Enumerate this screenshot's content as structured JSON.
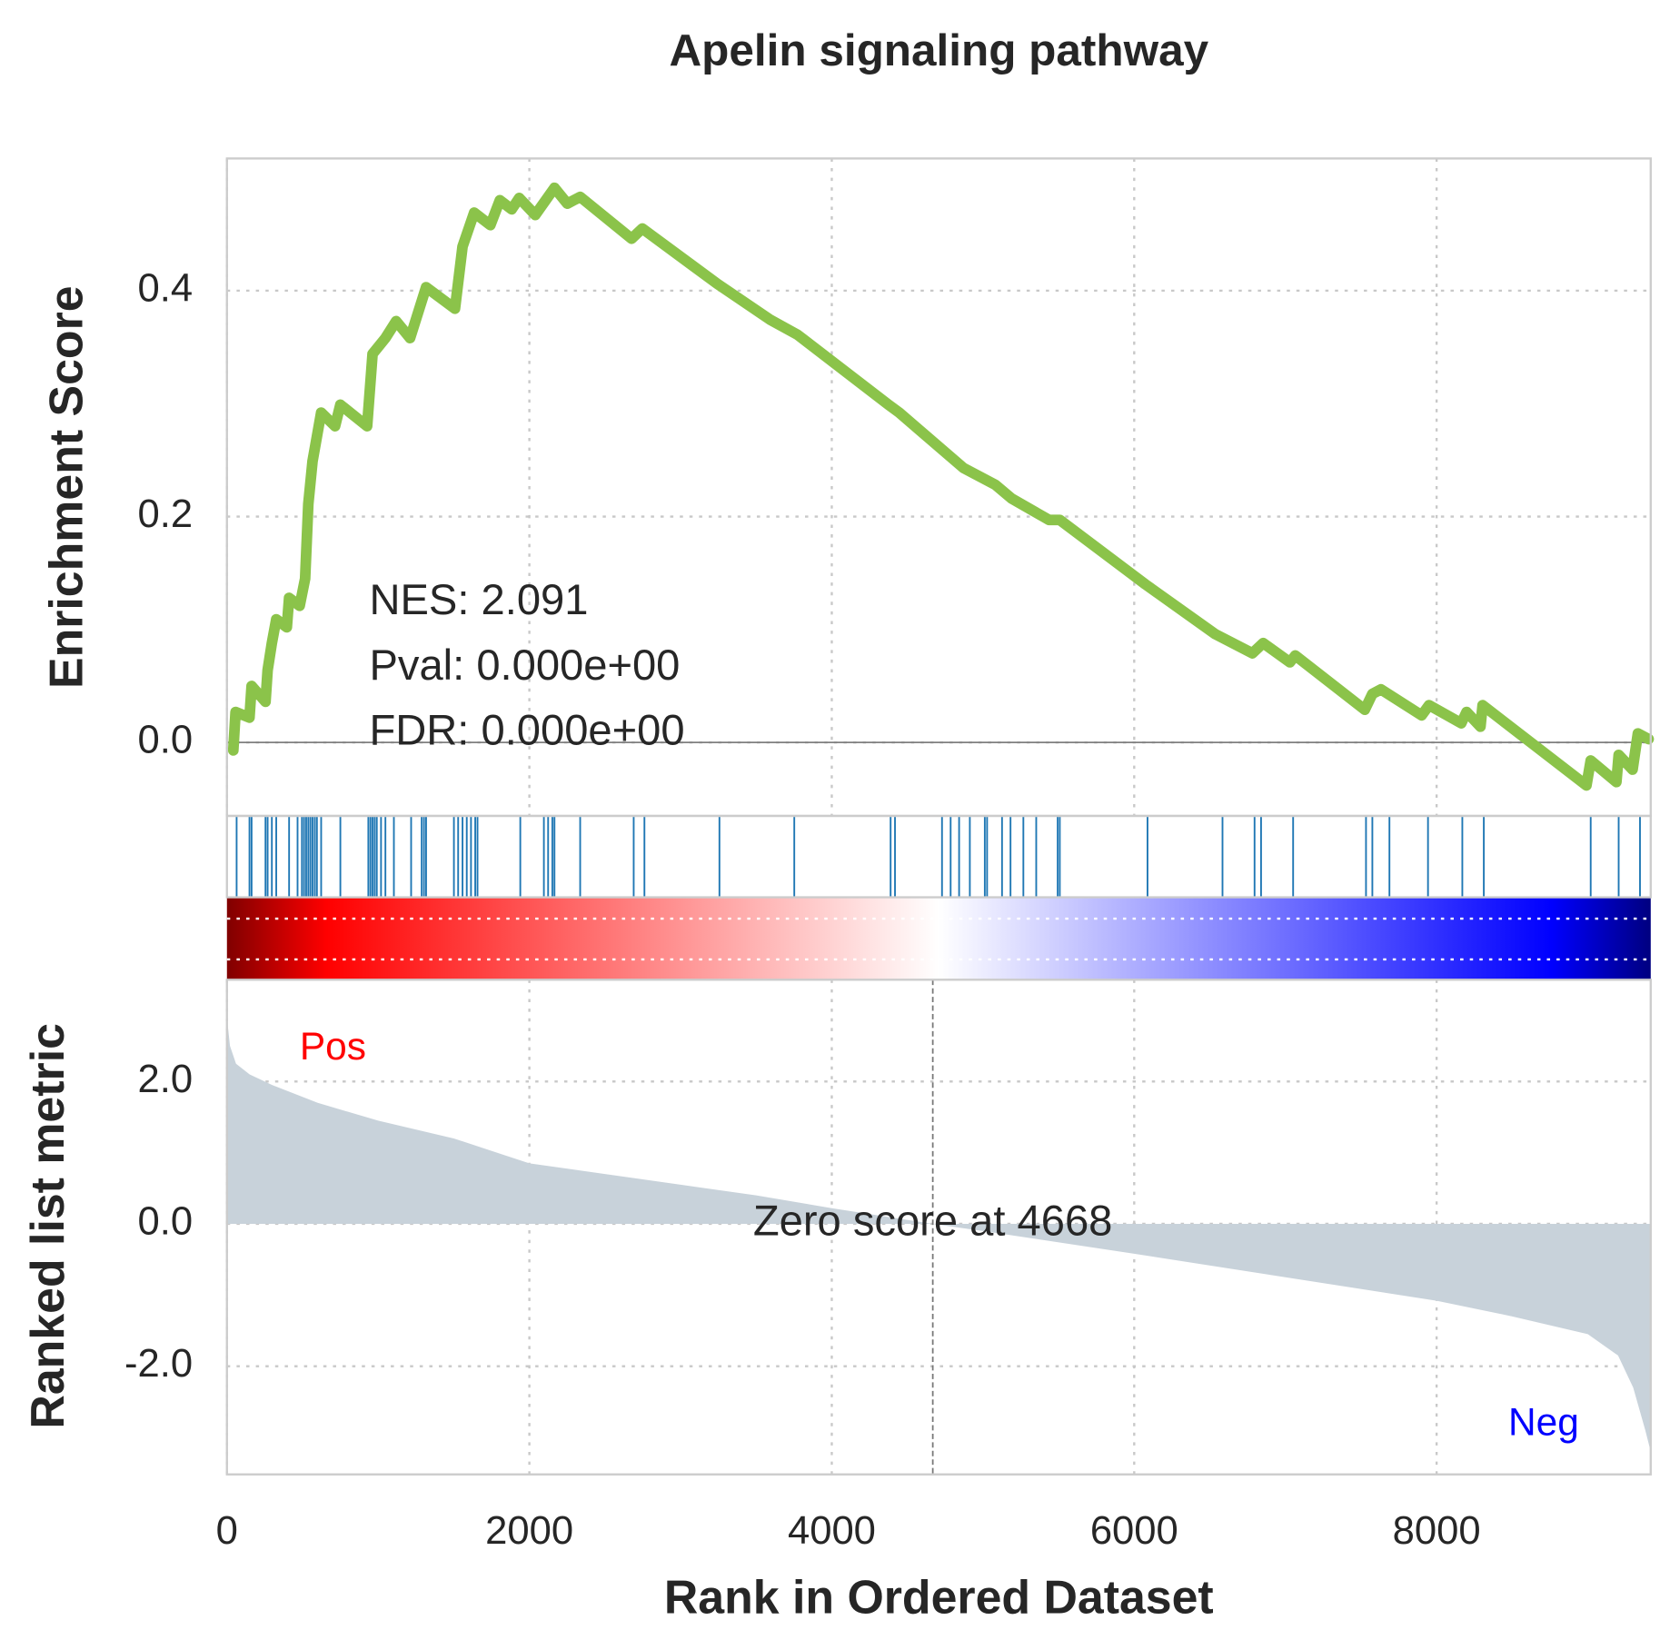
{
  "chart_data": {
    "type": "gsea",
    "title": "Apelin signaling pathway",
    "xlabel": "Rank in Ordered Dataset",
    "xlim": [
      0,
      9416
    ],
    "xticks": [
      0,
      2000,
      4000,
      6000,
      8000
    ],
    "grid": true,
    "annotations": [
      "NES: 2.091",
      "Pval: 0.000e+00",
      "FDR: 0.000e+00"
    ],
    "es": {
      "ylabel": "Enrichment Score",
      "color": "#8bc34a",
      "ylim": [
        -0.065,
        0.517
      ],
      "yticks": [
        {
          "value": 0,
          "label": "0.0"
        },
        {
          "value": 0.2,
          "label": "0.2"
        },
        {
          "value": 0.4,
          "label": "0.4"
        }
      ],
      "x": [
        42,
        57,
        149,
        163,
        255,
        269,
        297,
        326,
        396,
        411,
        481,
        517,
        538,
        566,
        623,
        715,
        750,
        927,
        963,
        1048,
        1119,
        1211,
        1317,
        1508,
        1558,
        1635,
        1742,
        1805,
        1883,
        1933,
        2039,
        2166,
        2251,
        2336,
        2676,
        2747,
        3243,
        3596,
        3773,
        4375,
        4446,
        4871,
        5083,
        5189,
        5437,
        5508,
        6074,
        6535,
        6782,
        6853,
        7030,
        7065,
        7525,
        7575,
        7632,
        7901,
        7950,
        8163,
        8198,
        8290,
        8304,
        8991,
        9019,
        9189,
        9204,
        9296,
        9331,
        9402
      ],
      "values": [
        -0.007,
        0.027,
        0.022,
        0.05,
        0.036,
        0.064,
        0.088,
        0.109,
        0.102,
        0.128,
        0.121,
        0.145,
        0.211,
        0.249,
        0.292,
        0.28,
        0.299,
        0.28,
        0.344,
        0.358,
        0.373,
        0.358,
        0.403,
        0.384,
        0.439,
        0.469,
        0.458,
        0.48,
        0.472,
        0.482,
        0.467,
        0.491,
        0.477,
        0.483,
        0.446,
        0.455,
        0.406,
        0.374,
        0.361,
        0.299,
        0.292,
        0.243,
        0.228,
        0.216,
        0.197,
        0.197,
        0.14,
        0.096,
        0.079,
        0.088,
        0.071,
        0.077,
        0.029,
        0.043,
        0.047,
        0.024,
        0.033,
        0.017,
        0.027,
        0.014,
        0.033,
        -0.038,
        -0.016,
        -0.035,
        -0.011,
        -0.024,
        0.008,
        0.003
      ]
    },
    "hits": {
      "color": "#1f77b4",
      "x": [
        64,
        149,
        163,
        255,
        269,
        297,
        326,
        411,
        467,
        496,
        510,
        524,
        538,
        552,
        566,
        581,
        595,
        623,
        750,
        935,
        949,
        963,
        977,
        991,
        1019,
        1048,
        1104,
        1218,
        1288,
        1303,
        1317,
        1501,
        1529,
        1558,
        1586,
        1614,
        1642,
        1657,
        1940,
        2096,
        2124,
        2152,
        2166,
        2336,
        2690,
        2761,
        3257,
        3752,
        4389,
        4418,
        4729,
        4786,
        4842,
        4913,
        5012,
        5027,
        5126,
        5182,
        5267,
        5352,
        5494,
        5508,
        6088,
        6584,
        6796,
        6839,
        7051,
        7533,
        7575,
        7688,
        7943,
        8170,
        8312,
        9019,
        9204,
        9345
      ]
    },
    "metric": {
      "ylabel": "Ranked list metric",
      "color": "#c8d2da",
      "ylim": [
        -3.52,
        3.43
      ],
      "yticks": [
        {
          "value": -2,
          "label": "-2.0"
        },
        {
          "value": 0,
          "label": "0.0"
        },
        {
          "value": 2,
          "label": "2.0"
        }
      ],
      "x": [
        0,
        20,
        60,
        150,
        300,
        600,
        1000,
        1500,
        2000,
        2500,
        3000,
        3500,
        4000,
        4668,
        5000,
        6000,
        7000,
        8000,
        8500,
        9000,
        9200,
        9300,
        9380,
        9416
      ],
      "values": [
        2.9,
        2.5,
        2.25,
        2.1,
        1.95,
        1.7,
        1.45,
        1.2,
        0.85,
        0.7,
        0.55,
        0.4,
        0.22,
        0,
        -0.1,
        -0.42,
        -0.75,
        -1.08,
        -1.3,
        -1.55,
        -1.85,
        -2.3,
        -2.9,
        -3.2
      ],
      "zero_x": 4668,
      "zero_text": "Zero score at 4668",
      "pos_label": "Pos",
      "neg_label": "Neg"
    }
  }
}
